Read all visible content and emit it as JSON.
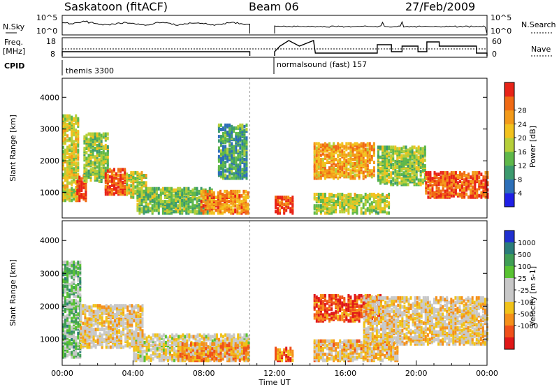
{
  "header": {
    "station": "Saskatoon (fitACF)",
    "beam": "Beam 06",
    "date": "27/Feb/2009"
  },
  "meta_panel": {
    "nsky_label": "N.Sky",
    "nsky_ticks": [
      "10^5",
      "10^0"
    ],
    "nsearch_label": "N.Search",
    "freq_label_line1": "Freq.",
    "freq_label_line2": "[MHz]",
    "freq_ticks": [
      "18",
      "8"
    ],
    "nave_label": "Nave",
    "nave_ticks": [
      "60",
      "0"
    ],
    "cpid_label": "CPID",
    "cpid_segments": [
      {
        "start_h": 0.0,
        "end_h": 10.6,
        "label": "themis 3300"
      },
      {
        "start_h": 12.0,
        "end_h": 24.0,
        "label": "normalsound (fast) 157"
      }
    ],
    "data_gap_h": [
      10.6,
      12.0
    ],
    "marker_h": 12.0
  },
  "chart_data": [
    {
      "type": "heatmap",
      "title": "",
      "xlabel": "",
      "ylabel": "Slant Range [km]",
      "xlim_h": [
        0,
        24
      ],
      "ylim": [
        200,
        4600
      ],
      "y_ticks": [
        1000,
        2000,
        3000,
        4000
      ],
      "colorbar_label": "Power [dB]",
      "colorbar_ticks": [
        "4",
        "8",
        "12",
        "16",
        "20",
        "24",
        "28"
      ],
      "colorbar_colors": [
        "#1f1fe6",
        "#2d6fb8",
        "#3c9a6e",
        "#5fb84a",
        "#b6cf3a",
        "#f2c21e",
        "#f39a1a",
        "#f06a14",
        "#e82418"
      ],
      "regions": [
        {
          "t0": 0.0,
          "t1": 0.9,
          "r0": 700,
          "r1": 3400,
          "level": 0.55
        },
        {
          "t0": 0.8,
          "t1": 1.3,
          "r0": 700,
          "r1": 1500,
          "level": 0.95
        },
        {
          "t0": 1.2,
          "t1": 2.6,
          "r0": 1300,
          "r1": 2800,
          "level": 0.45
        },
        {
          "t0": 2.4,
          "t1": 3.6,
          "r0": 900,
          "r1": 1700,
          "level": 0.85
        },
        {
          "t0": 3.6,
          "t1": 4.8,
          "r0": 800,
          "r1": 1600,
          "level": 0.55
        },
        {
          "t0": 4.2,
          "t1": 8.5,
          "r0": 300,
          "r1": 1100,
          "level": 0.4
        },
        {
          "t0": 7.8,
          "t1": 10.5,
          "r0": 300,
          "r1": 1000,
          "level": 0.75
        },
        {
          "t0": 8.8,
          "t1": 10.4,
          "r0": 1400,
          "r1": 3100,
          "level": 0.3
        },
        {
          "t0": 12.0,
          "t1": 13.0,
          "r0": 300,
          "r1": 800,
          "level": 0.9
        },
        {
          "t0": 14.2,
          "t1": 17.6,
          "r0": 1400,
          "r1": 2500,
          "level": 0.7
        },
        {
          "t0": 14.2,
          "t1": 18.5,
          "r0": 300,
          "r1": 900,
          "level": 0.5
        },
        {
          "t0": 17.8,
          "t1": 20.5,
          "r0": 1200,
          "r1": 2400,
          "level": 0.45
        },
        {
          "t0": 20.5,
          "t1": 24.0,
          "r0": 800,
          "r1": 1600,
          "level": 0.85
        }
      ]
    },
    {
      "type": "heatmap",
      "title": "",
      "xlabel": "Time UT",
      "ylabel": "Slant Range [km]",
      "xlim_h": [
        0,
        24
      ],
      "ylim": [
        200,
        4600
      ],
      "x_ticks": [
        "00:00",
        "04:00",
        "08:00",
        "12:00",
        "16:00",
        "20:00",
        "00:00"
      ],
      "y_ticks": [
        1000,
        2000,
        3000,
        4000
      ],
      "colorbar_label": "Velocity [m s-1]",
      "colorbar_ticks": [
        "1000",
        "500",
        "100",
        "25",
        "-25",
        "-100",
        "-500",
        "-1000"
      ],
      "colorbar_colors": [
        "#2030d0",
        "#2a7d7a",
        "#3f9e55",
        "#58c232",
        "#c8c8c8",
        "#c8c8c8",
        "#f0c21a",
        "#f5901a",
        "#f0501a",
        "#e01818"
      ],
      "regions": [
        {
          "t0": 0.0,
          "t1": 1.0,
          "r0": 400,
          "r1": 3300,
          "level": 0.35
        },
        {
          "t0": 1.0,
          "t1": 4.5,
          "r0": 700,
          "r1": 2000,
          "level": 0.6
        },
        {
          "t0": 4.0,
          "t1": 10.5,
          "r0": 300,
          "r1": 1100,
          "level": 0.55
        },
        {
          "t0": 6.5,
          "t1": 10.5,
          "r0": 300,
          "r1": 800,
          "level": 0.72
        },
        {
          "t0": 12.0,
          "t1": 13.0,
          "r0": 300,
          "r1": 700,
          "level": 0.8
        },
        {
          "t0": 14.2,
          "t1": 18.0,
          "r0": 1500,
          "r1": 2300,
          "level": 0.85
        },
        {
          "t0": 14.2,
          "t1": 19.0,
          "r0": 300,
          "r1": 900,
          "level": 0.65
        },
        {
          "t0": 17.0,
          "t1": 24.0,
          "r0": 800,
          "r1": 2200,
          "level": 0.6
        }
      ]
    }
  ]
}
